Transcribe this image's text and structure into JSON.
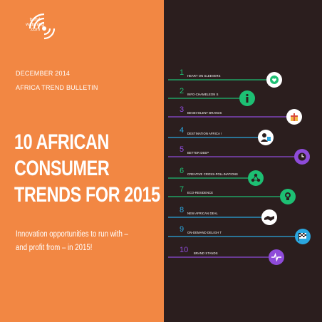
{
  "logo": {
    "line1": "trend",
    "line2": "watching",
    "line3": ".com"
  },
  "date": "DECEMBER 2014",
  "bulletin": "AFRICA TREND BULLETIN",
  "title_lines": [
    "10 AFRICAN",
    "CONSUMER",
    "TRENDS FOR 2015"
  ],
  "subtitle_lines": [
    "Innovation opportunities to run with –",
    "and profit from – in 2015!"
  ],
  "colors": {
    "orange_panel": "#f28743",
    "background": "#2b1e1e",
    "green": "#1dbf73",
    "blue": "#2aa7e0",
    "purple": "#8e4bd9",
    "white": "#ffffff"
  },
  "trends": [
    {
      "number": "1",
      "label": "HEART ON SLEEVERS",
      "color": "#1dbf73",
      "icon": "globe-heart-icon"
    },
    {
      "number": "2",
      "label": "INFO-CHAMELEON S",
      "color": "#1dbf73",
      "icon": "info-icon"
    },
    {
      "number": "3",
      "label": "BENEVOLENT BRANDS",
      "color": "#8e4bd9",
      "icon": "gift-icon"
    },
    {
      "number": "4",
      "label": "DESTINATION AFRICA !",
      "color": "#2aa7e0",
      "icon": "person-icon"
    },
    {
      "number": "5",
      "label": "BETTER DEEP",
      "color": "#8e4bd9",
      "icon": "clock-icon"
    },
    {
      "number": "6",
      "label": "CREATIVE CROSS-POLLINATIONS",
      "color": "#1dbf73",
      "icon": "network-icon"
    },
    {
      "number": "7",
      "label": "ECO-RESIDENCE",
      "color": "#1dbf73",
      "icon": "lightbulb-icon"
    },
    {
      "number": "8",
      "label": "NEW AFRICAN DEAL",
      "color": "#2aa7e0",
      "icon": "handshake-icon"
    },
    {
      "number": "9",
      "label": "ON-DEMAND DELIGH T",
      "color": "#2aa7e0",
      "icon": "flag-icon"
    },
    {
      "number": "10",
      "label": "BRAND STANDS",
      "color": "#8e4bd9",
      "icon": "heartbeat-icon"
    }
  ]
}
